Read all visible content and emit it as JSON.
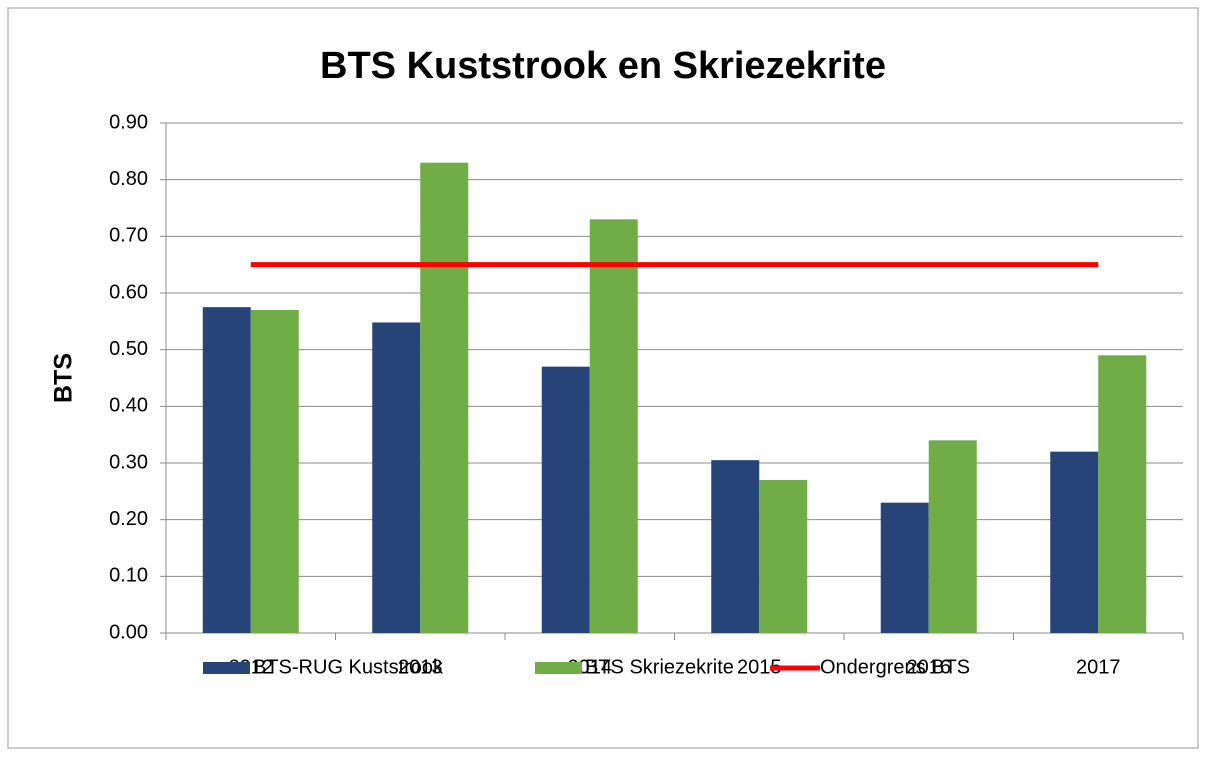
{
  "chart_data": {
    "type": "bar",
    "title": "BTS Kuststrook en Skriezekrite",
    "y_label": "BTS",
    "categories": [
      "2012",
      "2013",
      "2014",
      "2015",
      "2016",
      "2017"
    ],
    "series": [
      {
        "name": "BTS-RUG Kuststrook",
        "color": "#264478",
        "values": [
          0.575,
          0.548,
          0.47,
          0.305,
          0.23,
          0.32
        ]
      },
      {
        "name": "BTS Skriezekrite",
        "color": "#70ad47",
        "values": [
          0.57,
          0.83,
          0.73,
          0.27,
          0.34,
          0.49
        ]
      },
      {
        "name": "Ondergrens BTS",
        "color": "#ff0000",
        "type": "line",
        "values": [
          0.65,
          0.65,
          0.65,
          0.65,
          0.65,
          0.65
        ]
      }
    ],
    "ylim": [
      0,
      0.9
    ],
    "yticks": [
      {
        "value": 0,
        "label": "0.00"
      },
      {
        "value": 0.1,
        "label": "0.10"
      },
      {
        "value": 0.2,
        "label": "0.20"
      },
      {
        "value": 0.3,
        "label": "0.30"
      },
      {
        "value": 0.4,
        "label": "0.40"
      },
      {
        "value": 0.5,
        "label": "0.50"
      },
      {
        "value": 0.6,
        "label": "0.60"
      },
      {
        "value": 0.7,
        "label": "0.70"
      },
      {
        "value": 0.8,
        "label": "0.80"
      },
      {
        "value": 0.9,
        "label": "0.90"
      }
    ],
    "grid": true,
    "legend": "bottom"
  }
}
